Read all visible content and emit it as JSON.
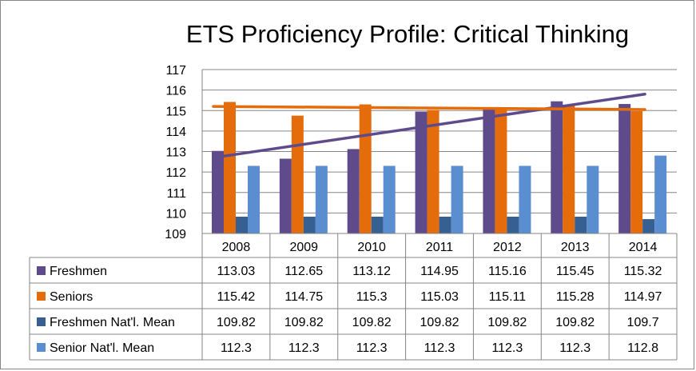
{
  "chart_data": {
    "type": "bar",
    "title": "ETS Proficiency Profile: Critical Thinking",
    "categories": [
      "2008",
      "2009",
      "2010",
      "2011",
      "2012",
      "2013",
      "2014"
    ],
    "ylim": [
      109,
      117
    ],
    "yticks": [
      "109",
      "110",
      "111",
      "112",
      "113",
      "114",
      "115",
      "116",
      "117"
    ],
    "grid": true,
    "legend": "data-table-below",
    "series": [
      {
        "name": "Freshmen",
        "color": "#5f4b8b",
        "values": [
          113.03,
          112.65,
          113.12,
          114.95,
          115.16,
          115.45,
          115.32
        ],
        "labels": [
          "113.03",
          "112.65",
          "113.12",
          "114.95",
          "115.16",
          "115.45",
          "115.32"
        ]
      },
      {
        "name": "Seniors",
        "color": "#e46c0a",
        "values": [
          115.42,
          114.75,
          115.3,
          115.03,
          115.11,
          115.28,
          114.97
        ],
        "labels": [
          "115.42",
          "114.75",
          "115.3",
          "115.03",
          "115.11",
          "115.28",
          "114.97"
        ]
      },
      {
        "name": "Freshmen Nat'l. Mean",
        "color": "#366092",
        "values": [
          109.82,
          109.82,
          109.82,
          109.82,
          109.82,
          109.82,
          109.7
        ],
        "labels": [
          "109.82",
          "109.82",
          "109.82",
          "109.82",
          "109.82",
          "109.82",
          "109.7"
        ]
      },
      {
        "name": "Senior Nat'l. Mean",
        "color": "#5b8ed0",
        "values": [
          112.3,
          112.3,
          112.3,
          112.3,
          112.3,
          112.3,
          112.8
        ],
        "labels": [
          "112.3",
          "112.3",
          "112.3",
          "112.3",
          "112.3",
          "112.3",
          "112.8"
        ]
      }
    ],
    "trendlines": [
      {
        "series": "Freshmen",
        "color": "#5f4b8b",
        "start": 112.7,
        "end": 115.8
      },
      {
        "series": "Seniors",
        "color": "#e46c0a",
        "start": 115.2,
        "end": 115.05
      }
    ]
  }
}
